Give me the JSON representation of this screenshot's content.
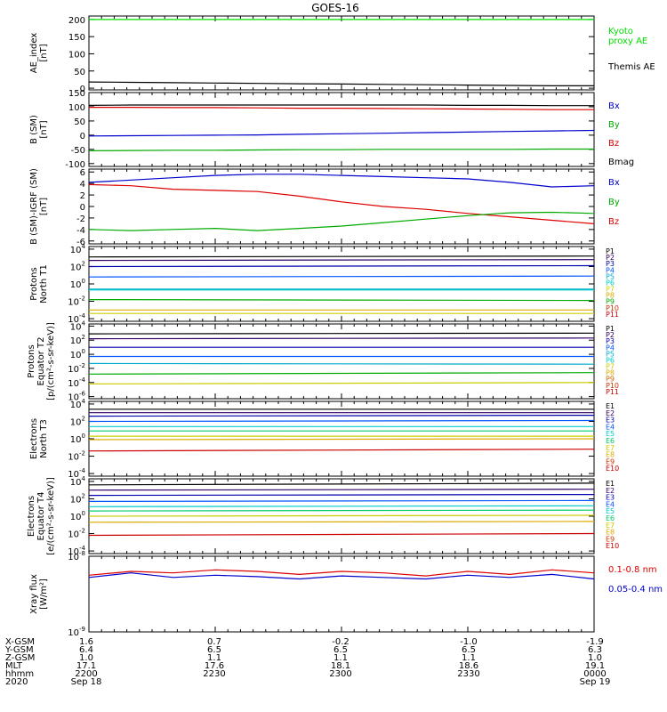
{
  "title": "GOES-16",
  "panels": [
    {
      "id": "ae",
      "ylabel": [
        "AE_index",
        "[nT]"
      ],
      "type": "linear",
      "ylim": [
        -5,
        210
      ],
      "ticks": [
        "200",
        "150",
        "100",
        "50",
        "0"
      ],
      "tick_values": [
        200,
        150,
        100,
        50,
        0
      ],
      "legend": [
        {
          "text": "Kyoto",
          "color": "#00dd00"
        },
        {
          "text": "proxy AE",
          "color": "#00dd00"
        },
        {
          "text": "Themis AE",
          "color": "#000000"
        }
      ]
    },
    {
      "id": "bsm",
      "ylabel": [
        "B (SM)",
        "[nT]"
      ],
      "type": "linear",
      "ylim": [
        -110,
        150
      ],
      "ticks": [
        "150",
        "100",
        "50",
        "0",
        "-50",
        "-100"
      ],
      "tick_values": [
        150,
        100,
        50,
        0,
        -50,
        -100
      ],
      "legend": [
        {
          "text": "Bx",
          "color": "#0000cc"
        },
        {
          "text": "By",
          "color": "#00aa00"
        },
        {
          "text": "Bz",
          "color": "#dd0000"
        },
        {
          "text": "Bmag",
          "color": "#000000"
        }
      ]
    },
    {
      "id": "bigrf",
      "ylabel": [
        "B (SM)-IGRF (SM)",
        "[nT]"
      ],
      "type": "linear",
      "ylim": [
        -6.5,
        6.5
      ],
      "ticks": [
        "6",
        "4",
        "2",
        "0",
        "-2",
        "-4",
        "-6"
      ],
      "tick_values": [
        6,
        4,
        2,
        0,
        -2,
        -4,
        -6
      ],
      "legend": [
        {
          "text": "Bx",
          "color": "#0000cc"
        },
        {
          "text": "By",
          "color": "#00aa00"
        },
        {
          "text": "Bz",
          "color": "#dd0000"
        }
      ]
    },
    {
      "id": "pn",
      "ylabel": [
        "Protons",
        "North T1"
      ],
      "type": "log",
      "ylim": [
        -4.3,
        4.3
      ],
      "ticks": [
        "10^4",
        "10^2",
        "10^0",
        "10^-2",
        "10^-4"
      ],
      "tick_values": [
        4,
        2,
        0,
        -2,
        -4
      ],
      "legend_small": [
        {
          "text": "P1",
          "color": "#000000"
        },
        {
          "text": "P2",
          "color": "#330066"
        },
        {
          "text": "P3",
          "color": "#0000aa"
        },
        {
          "text": "P4",
          "color": "#0055ff"
        },
        {
          "text": "P5",
          "color": "#00aacc"
        },
        {
          "text": "P6",
          "color": "#00cccc"
        },
        {
          "text": "P7",
          "color": "#cccc00"
        },
        {
          "text": "P8",
          "color": "#ddaa00"
        },
        {
          "text": "P9",
          "color": "#00aa00"
        },
        {
          "text": "P10",
          "color": "#cc3300"
        },
        {
          "text": "P11",
          "color": "#cc0000"
        }
      ]
    },
    {
      "id": "pe",
      "ylabel": [
        "Protons",
        "Equator T2",
        "[p/(cm²-s-sr-keV)]"
      ],
      "type": "log",
      "ylim": [
        -6.3,
        4.3
      ],
      "ticks": [
        "10^4",
        "10^2",
        "10^0",
        "10^-2",
        "10^-4",
        "10^-6"
      ],
      "tick_values": [
        4,
        2,
        0,
        -2,
        -4,
        -6
      ],
      "legend_small": [
        {
          "text": "P1",
          "color": "#000000"
        },
        {
          "text": "P2",
          "color": "#330066"
        },
        {
          "text": "P3",
          "color": "#0000aa"
        },
        {
          "text": "P4",
          "color": "#0055ff"
        },
        {
          "text": "P5",
          "color": "#00aacc"
        },
        {
          "text": "P6",
          "color": "#00cccc"
        },
        {
          "text": "P7",
          "color": "#cccc00"
        },
        {
          "text": "P8",
          "color": "#ddaa00"
        },
        {
          "text": "P9",
          "color": "#cc6600"
        },
        {
          "text": "P10",
          "color": "#cc3300"
        },
        {
          "text": "P11",
          "color": "#cc0000"
        }
      ]
    },
    {
      "id": "en",
      "ylabel": [
        "Electrons",
        "North T3"
      ],
      "type": "log",
      "ylim": [
        -4.3,
        4.3
      ],
      "ticks": [
        "10^4",
        "10^2",
        "10^0",
        "10^-2",
        "10^-4"
      ],
      "tick_values": [
        4,
        2,
        0,
        -2,
        -4
      ],
      "legend_small": [
        {
          "text": "E1",
          "color": "#000000"
        },
        {
          "text": "E2",
          "color": "#330066"
        },
        {
          "text": "E3",
          "color": "#0000aa"
        },
        {
          "text": "E4",
          "color": "#0055ff"
        },
        {
          "text": "E5",
          "color": "#00cccc"
        },
        {
          "text": "E6",
          "color": "#00cc66"
        },
        {
          "text": "E7",
          "color": "#cccc00"
        },
        {
          "text": "E8",
          "color": "#ddaa00"
        },
        {
          "text": "E9",
          "color": "#cc3300"
        },
        {
          "text": "E10",
          "color": "#cc0000"
        }
      ]
    },
    {
      "id": "ee",
      "ylabel": [
        "Electrons",
        "Equator T4",
        "[e/(cm²-s-sr-keV)]"
      ],
      "type": "log",
      "ylim": [
        -4.3,
        4.3
      ],
      "ticks": [
        "10^4",
        "10^2",
        "10^0",
        "10^-2",
        "10^-4"
      ],
      "tick_values": [
        4,
        2,
        0,
        -2,
        -4
      ],
      "legend_small": [
        {
          "text": "E1",
          "color": "#000000"
        },
        {
          "text": "E2",
          "color": "#330066"
        },
        {
          "text": "E3",
          "color": "#0000aa"
        },
        {
          "text": "E4",
          "color": "#0055ff"
        },
        {
          "text": "E5",
          "color": "#00cccc"
        },
        {
          "text": "E6",
          "color": "#00cc66"
        },
        {
          "text": "E7",
          "color": "#cccc00"
        },
        {
          "text": "E8",
          "color": "#ddaa00"
        },
        {
          "text": "E9",
          "color": "#cc3300"
        },
        {
          "text": "E10",
          "color": "#cc0000"
        }
      ]
    },
    {
      "id": "xray",
      "ylabel": [
        "Xray flux",
        "[W/m²]"
      ],
      "type": "log",
      "ylim": [
        -9,
        -8
      ],
      "ticks": [
        "10^-8",
        "10^-9"
      ],
      "tick_values": [
        -8,
        -9
      ],
      "legend": [
        {
          "text": "0.1-0.8 nm",
          "color": "#dd0000"
        },
        {
          "text": "0.05-0.4 nm",
          "color": "#0000cc"
        }
      ]
    }
  ],
  "xaxis": {
    "rows": [
      {
        "label": "X-GSM",
        "values": [
          "1.6",
          "0.7",
          "-0.2",
          "-1.0",
          "-1.9"
        ]
      },
      {
        "label": "Y-GSM",
        "values": [
          "6.4",
          "6.5",
          "6.5",
          "6.5",
          "6.3"
        ]
      },
      {
        "label": "Z-GSM",
        "values": [
          "1.0",
          "1.1",
          "1.1",
          "1.1",
          "1.0"
        ]
      },
      {
        "label": "MLT",
        "values": [
          "17.1",
          "17.6",
          "18.1",
          "18.6",
          "19.1"
        ]
      },
      {
        "label": "hhmm",
        "values": [
          "2200",
          "2230",
          "2300",
          "2330",
          "0000"
        ]
      },
      {
        "label": "2020",
        "values": [
          "Sep 18",
          "",
          "",
          "",
          "Sep 19"
        ]
      }
    ]
  },
  "chart_data": [
    {
      "type": "line",
      "panel": "ae",
      "x": [
        0,
        10,
        20,
        30,
        40,
        50,
        60,
        70,
        80,
        90,
        100,
        110,
        120
      ],
      "series": [
        {
          "name": "Kyoto proxy AE",
          "color": "#00dd00",
          "values": [
            200,
            200,
            200,
            200,
            200,
            200,
            200,
            200,
            200,
            200,
            200,
            200,
            200
          ]
        },
        {
          "name": "Themis AE",
          "color": "#000000",
          "values": [
            18,
            17,
            16,
            15,
            14,
            13,
            12,
            11,
            10,
            9,
            8,
            7,
            7
          ]
        }
      ]
    },
    {
      "type": "line",
      "panel": "bsm",
      "x": [
        0,
        10,
        20,
        30,
        40,
        50,
        60,
        70,
        80,
        90,
        100,
        110,
        120
      ],
      "series": [
        {
          "name": "Bmag",
          "color": "#000000",
          "values": [
            105,
            106,
            106,
            106,
            106,
            106,
            106,
            106,
            106,
            105,
            105,
            104,
            104
          ]
        },
        {
          "name": "Bz",
          "color": "#dd0000",
          "values": [
            98,
            98,
            97,
            97,
            96,
            95,
            95,
            94,
            93,
            92,
            91,
            90,
            90
          ]
        },
        {
          "name": "Bx",
          "color": "#0000cc",
          "values": [
            -3,
            -2,
            -1,
            0,
            1,
            3,
            5,
            7,
            9,
            11,
            13,
            15,
            17
          ]
        },
        {
          "name": "By",
          "color": "#00aa00",
          "values": [
            -55,
            -54,
            -53,
            -53,
            -52,
            -51,
            -51,
            -50,
            -50,
            -50,
            -50,
            -49,
            -49
          ]
        }
      ]
    },
    {
      "type": "line",
      "panel": "bigrf",
      "x": [
        0,
        10,
        20,
        30,
        40,
        50,
        60,
        70,
        80,
        90,
        100,
        110,
        120
      ],
      "series": [
        {
          "name": "Bx",
          "color": "#0000cc",
          "values": [
            4.2,
            4.6,
            5.0,
            5.4,
            5.6,
            5.6,
            5.4,
            5.2,
            5.0,
            4.8,
            4.2,
            3.4,
            3.6
          ]
        },
        {
          "name": "Bz",
          "color": "#dd0000",
          "values": [
            3.8,
            3.6,
            3.0,
            2.8,
            2.6,
            1.8,
            0.8,
            0.0,
            -0.5,
            -1.2,
            -1.8,
            -2.4,
            -3.0
          ]
        },
        {
          "name": "By",
          "color": "#00aa00",
          "values": [
            -4.0,
            -4.2,
            -4.0,
            -3.8,
            -4.2,
            -3.8,
            -3.4,
            -2.8,
            -2.2,
            -1.6,
            -1.1,
            -1.0,
            -1.2
          ]
        }
      ]
    },
    {
      "type": "line",
      "panel": "pn",
      "x": [
        0,
        120
      ],
      "series": [
        {
          "name": "P1",
          "color": "#000000",
          "values": [
            3.1,
            3.2
          ]
        },
        {
          "name": "P2",
          "color": "#330066",
          "values": [
            2.7,
            2.8
          ]
        },
        {
          "name": "P3",
          "color": "#0000aa",
          "values": [
            2.0,
            2.1
          ]
        },
        {
          "name": "P4",
          "color": "#0055ff",
          "values": [
            0.8,
            0.9
          ]
        },
        {
          "name": "P5",
          "color": "#00aacc",
          "values": [
            -0.6,
            -0.6
          ]
        },
        {
          "name": "P6",
          "color": "#00cccc",
          "values": [
            -0.7,
            -0.7
          ]
        },
        {
          "name": "P9",
          "color": "#00aa00",
          "values": [
            -1.8,
            -1.9
          ]
        },
        {
          "name": "P8",
          "color": "#ddaa00",
          "values": [
            -3.0,
            -3.0
          ]
        },
        {
          "name": "P7",
          "color": "#cccc00",
          "values": [
            -3.4,
            -3.4
          ]
        }
      ]
    },
    {
      "type": "line",
      "panel": "pe",
      "x": [
        0,
        120
      ],
      "series": [
        {
          "name": "P1",
          "color": "#000000",
          "values": [
            2.9,
            3.0
          ]
        },
        {
          "name": "P2",
          "color": "#330066",
          "values": [
            2.2,
            2.3
          ]
        },
        {
          "name": "P3",
          "color": "#0000aa",
          "values": [
            1.0,
            1.0
          ]
        },
        {
          "name": "P4",
          "color": "#0055ff",
          "values": [
            -0.3,
            -0.3
          ]
        },
        {
          "name": "P5",
          "color": "#00aacc",
          "values": [
            -1.3,
            -1.4
          ]
        },
        {
          "name": "P6",
          "color": "#00aa00",
          "values": [
            -2.8,
            -2.6
          ]
        },
        {
          "name": "P7",
          "color": "#cccc00",
          "values": [
            -4.2,
            -4.0
          ]
        }
      ]
    },
    {
      "type": "line",
      "panel": "en",
      "x": [
        0,
        120
      ],
      "series": [
        {
          "name": "E1",
          "color": "#000000",
          "values": [
            3.4,
            3.4
          ]
        },
        {
          "name": "E2",
          "color": "#330066",
          "values": [
            3.0,
            3.0
          ]
        },
        {
          "name": "E3",
          "color": "#0000aa",
          "values": [
            2.6,
            2.7
          ]
        },
        {
          "name": "E4",
          "color": "#0055ff",
          "values": [
            2.0,
            2.1
          ]
        },
        {
          "name": "E5",
          "color": "#00cccc",
          "values": [
            1.4,
            1.4
          ]
        },
        {
          "name": "E6",
          "color": "#00cc66",
          "values": [
            0.9,
            0.9
          ]
        },
        {
          "name": "E7",
          "color": "#cccc00",
          "values": [
            0.3,
            0.3
          ]
        },
        {
          "name": "E8",
          "color": "#ddaa00",
          "values": [
            -0.1,
            0.0
          ]
        },
        {
          "name": "E10",
          "color": "#cc0000",
          "values": [
            -1.4,
            -1.2
          ]
        }
      ]
    },
    {
      "type": "line",
      "panel": "ee",
      "x": [
        0,
        120
      ],
      "series": [
        {
          "name": "E1",
          "color": "#000000",
          "values": [
            3.6,
            3.8
          ]
        },
        {
          "name": "E2",
          "color": "#330066",
          "values": [
            3.0,
            3.1
          ]
        },
        {
          "name": "E3",
          "color": "#0000aa",
          "values": [
            2.4,
            2.5
          ]
        },
        {
          "name": "E4",
          "color": "#0055ff",
          "values": [
            1.7,
            1.8
          ]
        },
        {
          "name": "E5",
          "color": "#00cccc",
          "values": [
            1.1,
            1.2
          ]
        },
        {
          "name": "E6",
          "color": "#00cc66",
          "values": [
            0.6,
            0.7
          ]
        },
        {
          "name": "E7",
          "color": "#cccc00",
          "values": [
            0.0,
            0.1
          ]
        },
        {
          "name": "E8",
          "color": "#ddaa00",
          "values": [
            -0.7,
            -0.6
          ]
        },
        {
          "name": "E10",
          "color": "#cc0000",
          "values": [
            -2.2,
            -2.0
          ]
        }
      ]
    },
    {
      "type": "line",
      "panel": "xray",
      "x": [
        0,
        10,
        20,
        30,
        40,
        50,
        60,
        70,
        80,
        90,
        100,
        110,
        120
      ],
      "series": [
        {
          "name": "0.1-0.8 nm",
          "color": "#dd0000",
          "values": [
            -8.25,
            -8.2,
            -8.22,
            -8.18,
            -8.2,
            -8.24,
            -8.2,
            -8.22,
            -8.26,
            -8.2,
            -8.24,
            -8.18,
            -8.22
          ]
        },
        {
          "name": "0.05-0.4 nm",
          "color": "#0000cc",
          "values": [
            -8.28,
            -8.22,
            -8.28,
            -8.25,
            -8.27,
            -8.3,
            -8.26,
            -8.28,
            -8.3,
            -8.25,
            -8.28,
            -8.24,
            -8.3
          ]
        }
      ]
    }
  ]
}
